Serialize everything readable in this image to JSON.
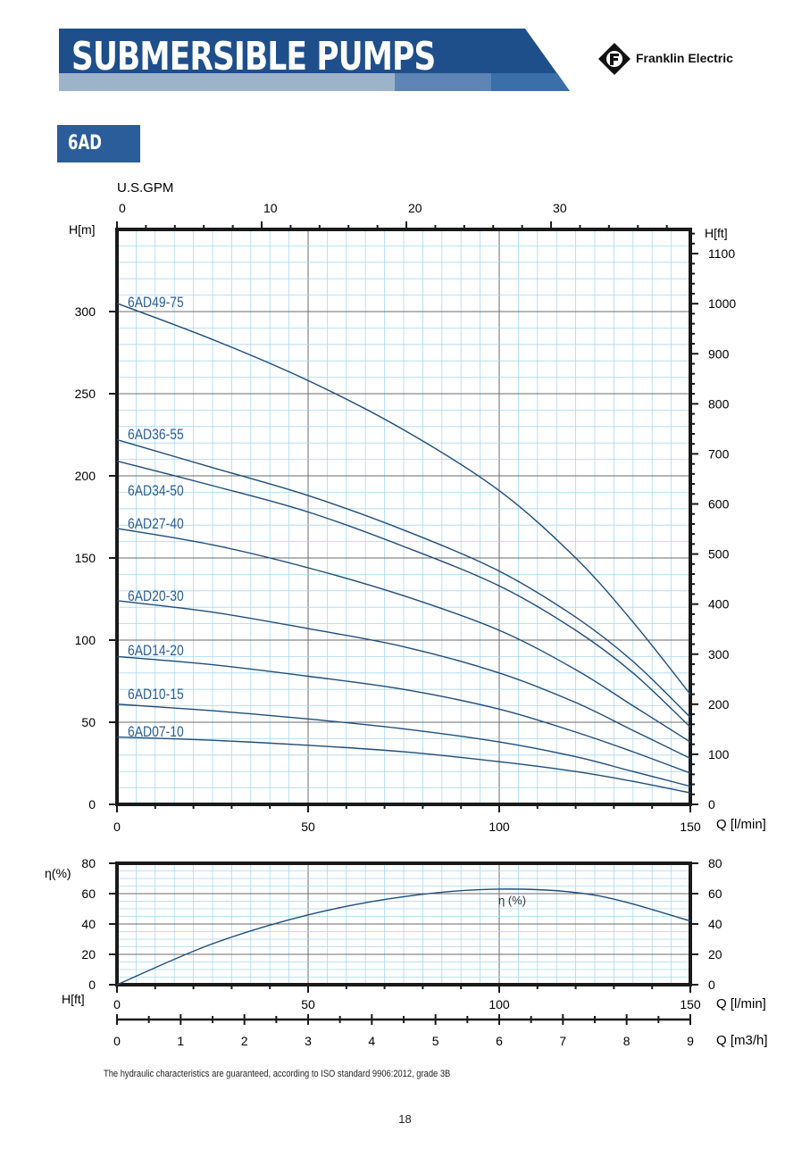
{
  "header": {
    "title": "SUBMERSIBLE PUMPS",
    "brand": "Franklin Electric",
    "model_tab": "6AD",
    "colors": {
      "banner_dark": "#1f4f8b",
      "banner_mid": "#3a6fa8",
      "banner_light": "#9db3cc",
      "tab": "#2a5d9a",
      "curve": "#1e4d7b"
    }
  },
  "footer": {
    "note": "The hydraulic characteristics are guaranteed, according to ISO standard 9906:2012, grade 3B",
    "page": "18"
  },
  "chart_data": [
    {
      "type": "line",
      "title": "",
      "xlabel": "Q [l/min]",
      "ylabel": "H[m]",
      "y2label": "H[ft]",
      "x2label": "U.S.GPM",
      "xlim": [
        0,
        150
      ],
      "ylim": [
        0,
        350
      ],
      "y2lim": [
        0,
        1148.3
      ],
      "x_ticks": [
        0,
        50,
        100,
        150
      ],
      "y_ticks": [
        0,
        50,
        100,
        150,
        200,
        250,
        300
      ],
      "y2_ticks": [
        0,
        100,
        200,
        300,
        400,
        500,
        600,
        700,
        800,
        900,
        1000,
        1100
      ],
      "x2_ticks": [
        0,
        10,
        20,
        30
      ],
      "grid": true,
      "series": [
        {
          "name": "6AD49-75",
          "x": [
            0,
            25,
            50,
            75,
            100,
            120,
            135,
            150
          ],
          "y": [
            305,
            283,
            258,
            228,
            191,
            150,
            111,
            67
          ]
        },
        {
          "name": "6AD36-55",
          "x": [
            0,
            25,
            50,
            75,
            100,
            120,
            135,
            150
          ],
          "y": [
            222,
            205,
            188,
            167,
            142,
            114,
            87,
            53
          ]
        },
        {
          "name": "6AD34-50",
          "x": [
            0,
            25,
            50,
            75,
            100,
            120,
            135,
            150
          ],
          "y": [
            209,
            194,
            178,
            157,
            133,
            106,
            80,
            47
          ]
        },
        {
          "name": "6AD27-40",
          "x": [
            0,
            25,
            50,
            75,
            100,
            120,
            135,
            150
          ],
          "y": [
            168,
            158,
            144,
            127,
            106,
            82,
            60,
            38
          ]
        },
        {
          "name": "6AD20-30",
          "x": [
            0,
            25,
            50,
            75,
            100,
            120,
            135,
            150
          ],
          "y": [
            124,
            117,
            107,
            96,
            80,
            62,
            45,
            28
          ]
        },
        {
          "name": "6AD14-20",
          "x": [
            0,
            25,
            50,
            75,
            100,
            120,
            135,
            150
          ],
          "y": [
            90,
            85,
            78,
            70,
            58,
            44,
            32,
            19
          ]
        },
        {
          "name": "6AD10-15",
          "x": [
            0,
            25,
            50,
            75,
            100,
            120,
            135,
            150
          ],
          "y": [
            61,
            57,
            52,
            46,
            38,
            29,
            20,
            11
          ]
        },
        {
          "name": "6AD07-10",
          "x": [
            0,
            25,
            50,
            75,
            100,
            120,
            135,
            150
          ],
          "y": [
            41,
            39,
            36,
            32,
            26,
            20,
            14,
            7
          ]
        }
      ]
    },
    {
      "type": "line",
      "title": "",
      "ylabel": "η(%)",
      "y2label": "H[ft]",
      "xlabel": "Q [l/min]",
      "x3label": "Q [m3/h]",
      "xlim": [
        0,
        150
      ],
      "ylim": [
        0,
        80
      ],
      "x_ticks": [
        0,
        50,
        100,
        150
      ],
      "x3_ticks": [
        0,
        1,
        2,
        3,
        4,
        5,
        6,
        7,
        8,
        9
      ],
      "y_ticks": [
        0,
        20,
        40,
        60,
        80
      ],
      "grid": true,
      "series": [
        {
          "name": "η (%)",
          "x": [
            0,
            25,
            50,
            75,
            100,
            125,
            150
          ],
          "y": [
            0,
            27,
            46,
            58,
            63,
            59,
            42
          ]
        }
      ]
    }
  ]
}
